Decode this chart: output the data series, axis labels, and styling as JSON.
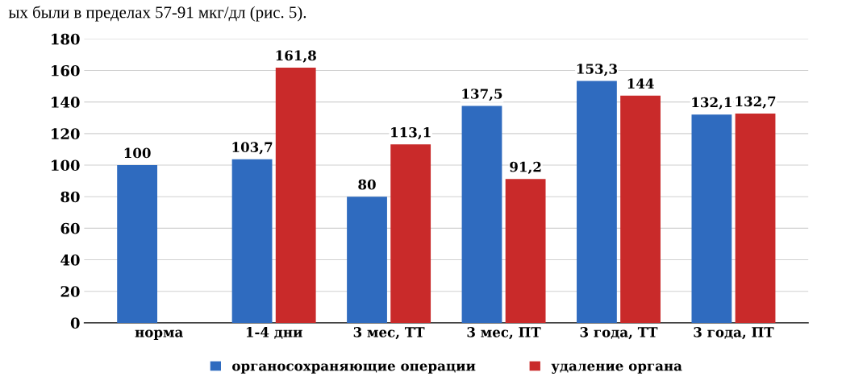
{
  "chart_data": {
    "type": "bar",
    "categories": [
      "норма",
      "1-4 дни",
      "3 мес, ТТ",
      "3 мес, ПТ",
      "3 года, ТТ",
      "3 года, ПТ"
    ],
    "series": [
      {
        "name": "органосохраняющие операции",
        "color": "#2f6bbf",
        "values": [
          100,
          103.7,
          80,
          137.5,
          153.3,
          132.1
        ],
        "value_labels": [
          "100",
          "103,7",
          "80",
          "137,5",
          "153,3",
          "132,1"
        ]
      },
      {
        "name": "удаление органа",
        "color": "#c92a2a",
        "values": [
          null,
          161.8,
          113.1,
          91.2,
          144,
          132.7
        ],
        "value_labels": [
          null,
          "161,8",
          "113,1",
          "91,2",
          "144",
          "132,7"
        ]
      }
    ],
    "ylim": [
      0,
      180
    ],
    "yticks": [
      0,
      20,
      40,
      60,
      80,
      100,
      120,
      140,
      160,
      180
    ],
    "grid": "y",
    "legend": "bottom",
    "annotations": [
      "ых были в пределах 57-91 мкг/дл (рис. 5)."
    ]
  }
}
